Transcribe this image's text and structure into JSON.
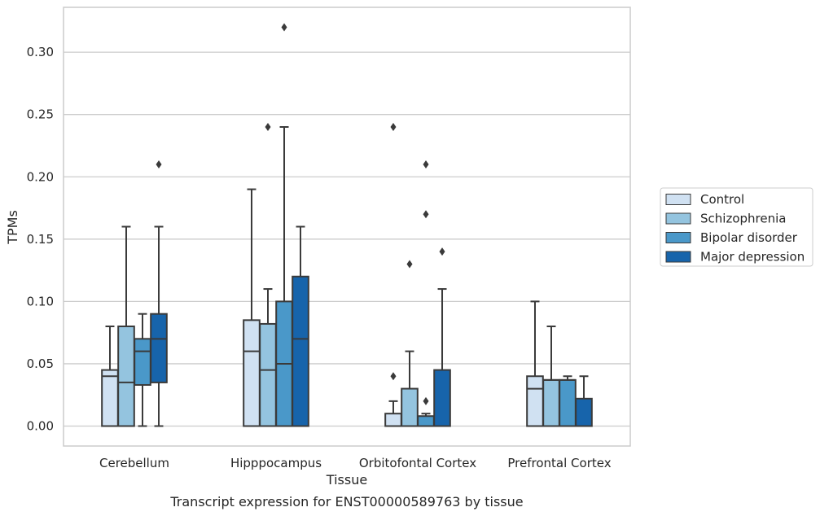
{
  "chart_data": {
    "type": "box",
    "caption": "Transcript expression for ENST00000589763 by tissue",
    "xlabel": "Tissue",
    "ylabel": "TPMs",
    "ylim": [
      -0.016,
      0.336
    ],
    "yticks": [
      0.0,
      0.05,
      0.1,
      0.15,
      0.2,
      0.25,
      0.3
    ],
    "ytick_labels": [
      "0.00",
      "0.05",
      "0.10",
      "0.15",
      "0.20",
      "0.25",
      "0.30"
    ],
    "grid": "horizontal",
    "legend_position": "right",
    "categories": [
      "Cerebellum",
      "Hipppocampus",
      "Orbitofontal Cortex",
      "Prefrontal Cortex"
    ],
    "series": [
      {
        "name": "Control",
        "color": "#d0e1f2",
        "boxes": [
          {
            "whislo": 0.0,
            "q1": 0.0,
            "med": 0.04,
            "q3": 0.045,
            "whishi": 0.08,
            "fliers": []
          },
          {
            "whislo": 0.0,
            "q1": 0.0,
            "med": 0.06,
            "q3": 0.085,
            "whishi": 0.19,
            "fliers": []
          },
          {
            "whislo": 0.0,
            "q1": 0.0,
            "med": 0.0,
            "q3": 0.01,
            "whishi": 0.02,
            "fliers": [
              0.04,
              0.24
            ]
          },
          {
            "whislo": 0.0,
            "q1": 0.0,
            "med": 0.03,
            "q3": 0.04,
            "whishi": 0.1,
            "fliers": []
          }
        ]
      },
      {
        "name": "Schizophrenia",
        "color": "#94c4df",
        "boxes": [
          {
            "whislo": 0.0,
            "q1": 0.0,
            "med": 0.035,
            "q3": 0.08,
            "whishi": 0.16,
            "fliers": []
          },
          {
            "whislo": 0.0,
            "q1": 0.0,
            "med": 0.045,
            "q3": 0.082,
            "whishi": 0.11,
            "fliers": [
              0.24
            ]
          },
          {
            "whislo": 0.0,
            "q1": 0.0,
            "med": 0.0,
            "q3": 0.03,
            "whishi": 0.06,
            "fliers": [
              0.13
            ]
          },
          {
            "whislo": 0.0,
            "q1": 0.0,
            "med": 0.037,
            "q3": 0.037,
            "whishi": 0.08,
            "fliers": []
          }
        ]
      },
      {
        "name": "Bipolar disorder",
        "color": "#4a98c9",
        "boxes": [
          {
            "whislo": 0.0,
            "q1": 0.033,
            "med": 0.06,
            "q3": 0.07,
            "whishi": 0.09,
            "fliers": []
          },
          {
            "whislo": 0.0,
            "q1": 0.0,
            "med": 0.05,
            "q3": 0.1,
            "whishi": 0.24,
            "fliers": [
              0.32
            ]
          },
          {
            "whislo": 0.0,
            "q1": 0.0,
            "med": 0.0,
            "q3": 0.008,
            "whishi": 0.01,
            "fliers": [
              0.02,
              0.17,
              0.21
            ]
          },
          {
            "whislo": 0.0,
            "q1": 0.0,
            "med": 0.037,
            "q3": 0.037,
            "whishi": 0.04,
            "fliers": []
          }
        ]
      },
      {
        "name": "Major depression",
        "color": "#1764ab",
        "boxes": [
          {
            "whislo": 0.0,
            "q1": 0.035,
            "med": 0.07,
            "q3": 0.09,
            "whishi": 0.16,
            "fliers": [
              0.21
            ]
          },
          {
            "whislo": 0.0,
            "q1": 0.0,
            "med": 0.07,
            "q3": 0.12,
            "whishi": 0.16,
            "fliers": []
          },
          {
            "whislo": 0.0,
            "q1": 0.0,
            "med": 0.0,
            "q3": 0.045,
            "whishi": 0.11,
            "fliers": [
              0.14
            ]
          },
          {
            "whislo": 0.0,
            "q1": 0.0,
            "med": 0.0,
            "q3": 0.022,
            "whishi": 0.04,
            "fliers": []
          }
        ]
      }
    ]
  }
}
